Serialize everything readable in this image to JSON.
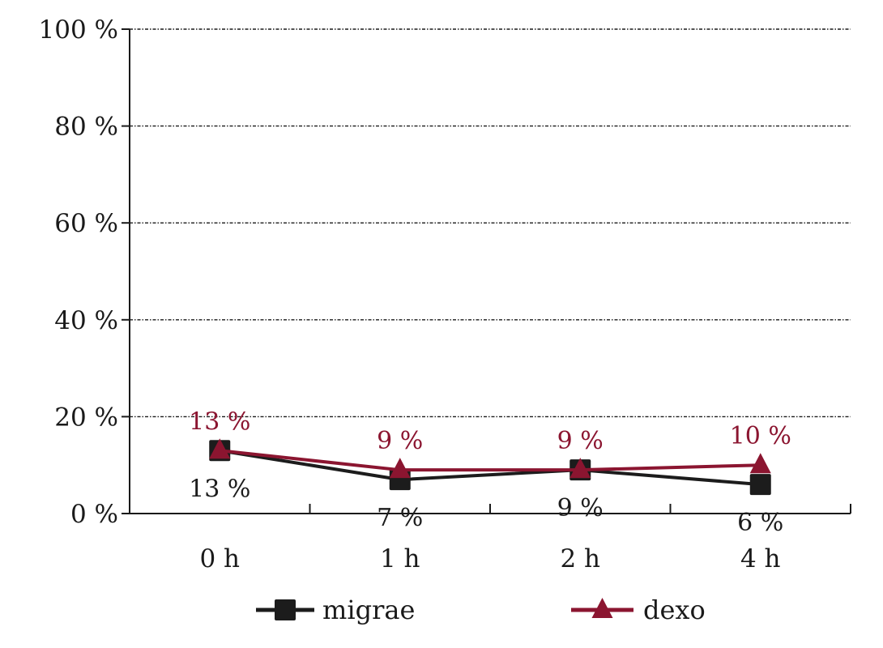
{
  "chart_data": {
    "type": "line",
    "categories": [
      "0 h",
      "1 h",
      "2 h",
      "4 h"
    ],
    "y_ticks": [
      "0 %",
      "20 %",
      "40 %",
      "60 %",
      "80 %",
      "100 %"
    ],
    "ylim": [
      0,
      100
    ],
    "grid": true,
    "legend_position": "bottom",
    "series": [
      {
        "name": "migrae",
        "values": [
          13,
          7,
          9,
          6
        ],
        "labels": [
          "13 %",
          "7 %",
          "9 %",
          "6 %"
        ],
        "color": "#1c1c1c",
        "marker": "square",
        "label_position": "below"
      },
      {
        "name": "dexo",
        "values": [
          13,
          9,
          9,
          10
        ],
        "labels": [
          "13 %",
          "9 %",
          "9 %",
          "10 %"
        ],
        "color": "#8b1530",
        "marker": "triangle",
        "label_position": "above"
      }
    ]
  }
}
